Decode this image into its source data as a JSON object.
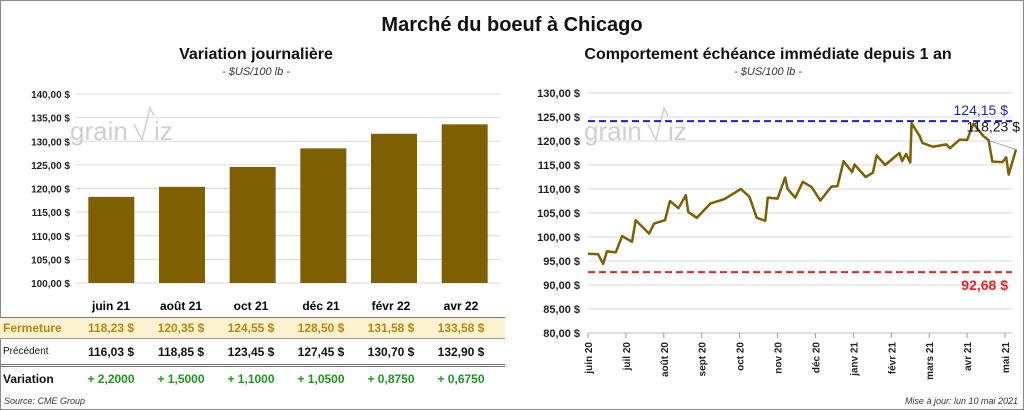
{
  "title": "Marché du boeuf à Chicago",
  "left": {
    "subtitle": "Variation  journalière",
    "unit": "- $US/100 lb -",
    "row_labels": {
      "close": "Fermeture",
      "previous": "Précédent",
      "change": "Variation"
    },
    "columns": [
      {
        "month": "juin 21",
        "close": "118,23  $",
        "previous": "116,03  $",
        "change": "+ 2,2000"
      },
      {
        "month": "août 21",
        "close": "120,35  $",
        "previous": "118,85  $",
        "change": "+ 1,5000"
      },
      {
        "month": "oct 21",
        "close": "124,55  $",
        "previous": "123,45  $",
        "change": "+ 1,1000"
      },
      {
        "month": "déc 21",
        "close": "128,50  $",
        "previous": "127,45  $",
        "change": "+ 1,0500"
      },
      {
        "month": "févr 22",
        "close": "131,58  $",
        "previous": "130,70  $",
        "change": "+ 0,8750"
      },
      {
        "month": "avr 22",
        "close": "133,58  $",
        "previous": "132,90  $",
        "change": "+ 0,6750"
      }
    ],
    "source": "Source: CME Group"
  },
  "right": {
    "subtitle": "Comportement  échéance immédiate depuis 1 an",
    "unit": "- $US/100 lb -",
    "updated": "Mise à jour: lun 10 mai 2021"
  },
  "watermark": "grainwiz",
  "colors": {
    "bar": "#7f6000",
    "line": "#7f6000",
    "high": "#1f1fbf",
    "low": "#ff1a1a",
    "close_row_bg": "#fdf2d0",
    "close_text": "#b8860b",
    "change_text": "#1a9a1a"
  },
  "chart_data": [
    {
      "type": "bar",
      "title": "Variation  journalière",
      "categories": [
        "juin 21",
        "août 21",
        "oct 21",
        "déc 21",
        "févr 22",
        "avr 22"
      ],
      "values": [
        118.23,
        120.35,
        124.55,
        128.5,
        131.58,
        133.58
      ],
      "ylim": [
        100,
        140
      ],
      "yticks": [
        "100,00 $",
        "105,00 $",
        "110,00 $",
        "115,00 $",
        "120,00 $",
        "125,00 $",
        "130,00 $",
        "135,00 $",
        "140,00 $"
      ],
      "grid": true
    },
    {
      "type": "line",
      "title": "Comportement  échéance immédiate depuis 1 an",
      "ylim": [
        80,
        130
      ],
      "yticks": [
        "80,00 $",
        "85,00 $",
        "90,00 $",
        "95,00 $",
        "100,00 $",
        "105,00 $",
        "110,00 $",
        "115,00 $",
        "120,00 $",
        "125,00 $",
        "130,00 $"
      ],
      "xticks": [
        "juin 20",
        "juil 20",
        "août 20",
        "sept 20",
        "oct 20",
        "nov 20",
        "déc 20",
        "janv 21",
        "févr 21",
        "mars 21",
        "avr 21",
        "mai 21"
      ],
      "grid": true,
      "high": {
        "value": 124.15,
        "label": "124,15 $"
      },
      "low": {
        "value": 92.68,
        "label": "92,68 $"
      },
      "last": {
        "value": 118.23,
        "label": "118,23 $"
      },
      "series": [
        [
          "2020-06-01",
          96.5
        ],
        [
          "2020-06-09",
          96.4
        ],
        [
          "2020-06-13",
          94.4
        ],
        [
          "2020-06-16",
          97
        ],
        [
          "2020-06-23",
          96.8
        ],
        [
          "2020-06-28",
          100.2
        ],
        [
          "2020-07-06",
          99
        ],
        [
          "2020-07-09",
          103.5
        ],
        [
          "2020-07-20",
          100.7
        ],
        [
          "2020-07-24",
          102.8
        ],
        [
          "2020-08-02",
          103.5
        ],
        [
          "2020-08-06",
          107.5
        ],
        [
          "2020-08-13",
          106
        ],
        [
          "2020-08-19",
          108.7
        ],
        [
          "2020-08-21",
          105.2
        ],
        [
          "2020-08-28",
          104
        ],
        [
          "2020-09-08",
          107
        ],
        [
          "2020-09-19",
          107.9
        ],
        [
          "2020-10-02",
          110
        ],
        [
          "2020-10-09",
          108.4
        ],
        [
          "2020-10-15",
          104
        ],
        [
          "2020-10-22",
          103.4
        ],
        [
          "2020-10-24",
          108.2
        ],
        [
          "2020-11-01",
          108
        ],
        [
          "2020-11-07",
          112.4
        ],
        [
          "2020-11-09",
          110
        ],
        [
          "2020-11-15",
          108.2
        ],
        [
          "2020-11-21",
          111.5
        ],
        [
          "2020-11-28",
          110.4
        ],
        [
          "2020-12-05",
          107.6
        ],
        [
          "2020-12-14",
          110.5
        ],
        [
          "2020-12-19",
          110.6
        ],
        [
          "2020-12-24",
          115.8
        ],
        [
          "2020-12-31",
          113.5
        ],
        [
          "2021-01-02",
          115.1
        ],
        [
          "2021-01-11",
          112.5
        ],
        [
          "2021-01-17",
          113.4
        ],
        [
          "2021-01-20",
          117
        ],
        [
          "2021-01-27",
          115
        ],
        [
          "2021-02-07",
          117.5
        ],
        [
          "2021-02-09",
          115.8
        ],
        [
          "2021-02-12",
          117.3
        ],
        [
          "2021-02-15",
          115.5
        ],
        [
          "2021-02-16",
          123.7
        ],
        [
          "2021-02-22",
          121
        ],
        [
          "2021-02-24",
          119.6
        ],
        [
          "2021-03-04",
          118.8
        ],
        [
          "2021-03-15",
          119.3
        ],
        [
          "2021-03-18",
          118.5
        ],
        [
          "2021-03-26",
          120.3
        ],
        [
          "2021-04-01",
          120.2
        ],
        [
          "2021-04-06",
          123.6
        ],
        [
          "2021-04-14",
          121
        ],
        [
          "2021-04-18",
          120.2
        ],
        [
          "2021-04-21",
          115.7
        ],
        [
          "2021-04-29",
          115.6
        ],
        [
          "2021-05-02",
          116.6
        ],
        [
          "2021-05-04",
          113
        ],
        [
          "2021-05-07",
          115.6
        ],
        [
          "2021-05-10",
          118.23
        ]
      ]
    }
  ]
}
